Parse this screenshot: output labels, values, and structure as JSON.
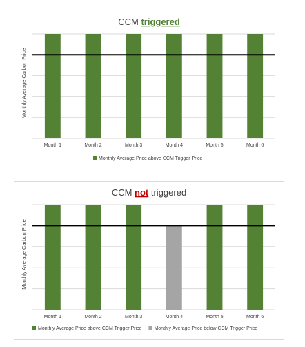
{
  "chart_data": [
    {
      "type": "bar",
      "title_prefix": "CCM ",
      "title_emphasis": "triggered",
      "emphasis_color": "#548235",
      "ylabel": "Monthly Average Carbon Price",
      "categories": [
        "Month 1",
        "Month 2",
        "Month 3",
        "Month 4",
        "Month 5",
        "Month 6"
      ],
      "values": [
        5,
        5,
        5,
        5,
        5,
        5
      ],
      "ylim": [
        0,
        5
      ],
      "threshold": 4,
      "bar_status": [
        "above",
        "above",
        "above",
        "above",
        "above",
        "above"
      ],
      "legend": [
        {
          "label": "Monthly Average Price above CCM Trigger Price",
          "color": "#548235"
        }
      ],
      "grid": true
    },
    {
      "type": "bar",
      "title_prefix": "CCM ",
      "title_emphasis": "not",
      "title_suffix": " triggered",
      "emphasis_color": "#c00000",
      "ylabel": "Monthly Average Carbon Price",
      "categories": [
        "Month 1",
        "Month 2",
        "Month 3",
        "Month 4",
        "Month 5",
        "Month 6"
      ],
      "values": [
        5,
        5,
        5,
        4,
        5,
        5
      ],
      "ylim": [
        0,
        5
      ],
      "threshold": 4,
      "bar_status": [
        "above",
        "above",
        "above",
        "below",
        "above",
        "above"
      ],
      "legend": [
        {
          "label": "Monthly Average Price above CCM Trigger Price",
          "color": "#548235"
        },
        {
          "label": "Monthly Average Price below CCM Trigger Price",
          "color": "#a5a5a5"
        }
      ],
      "grid": true
    }
  ],
  "colors": {
    "above": "#548235",
    "below": "#a5a5a5",
    "threshold_line": "#000000",
    "grid": "#d9d9d9"
  }
}
